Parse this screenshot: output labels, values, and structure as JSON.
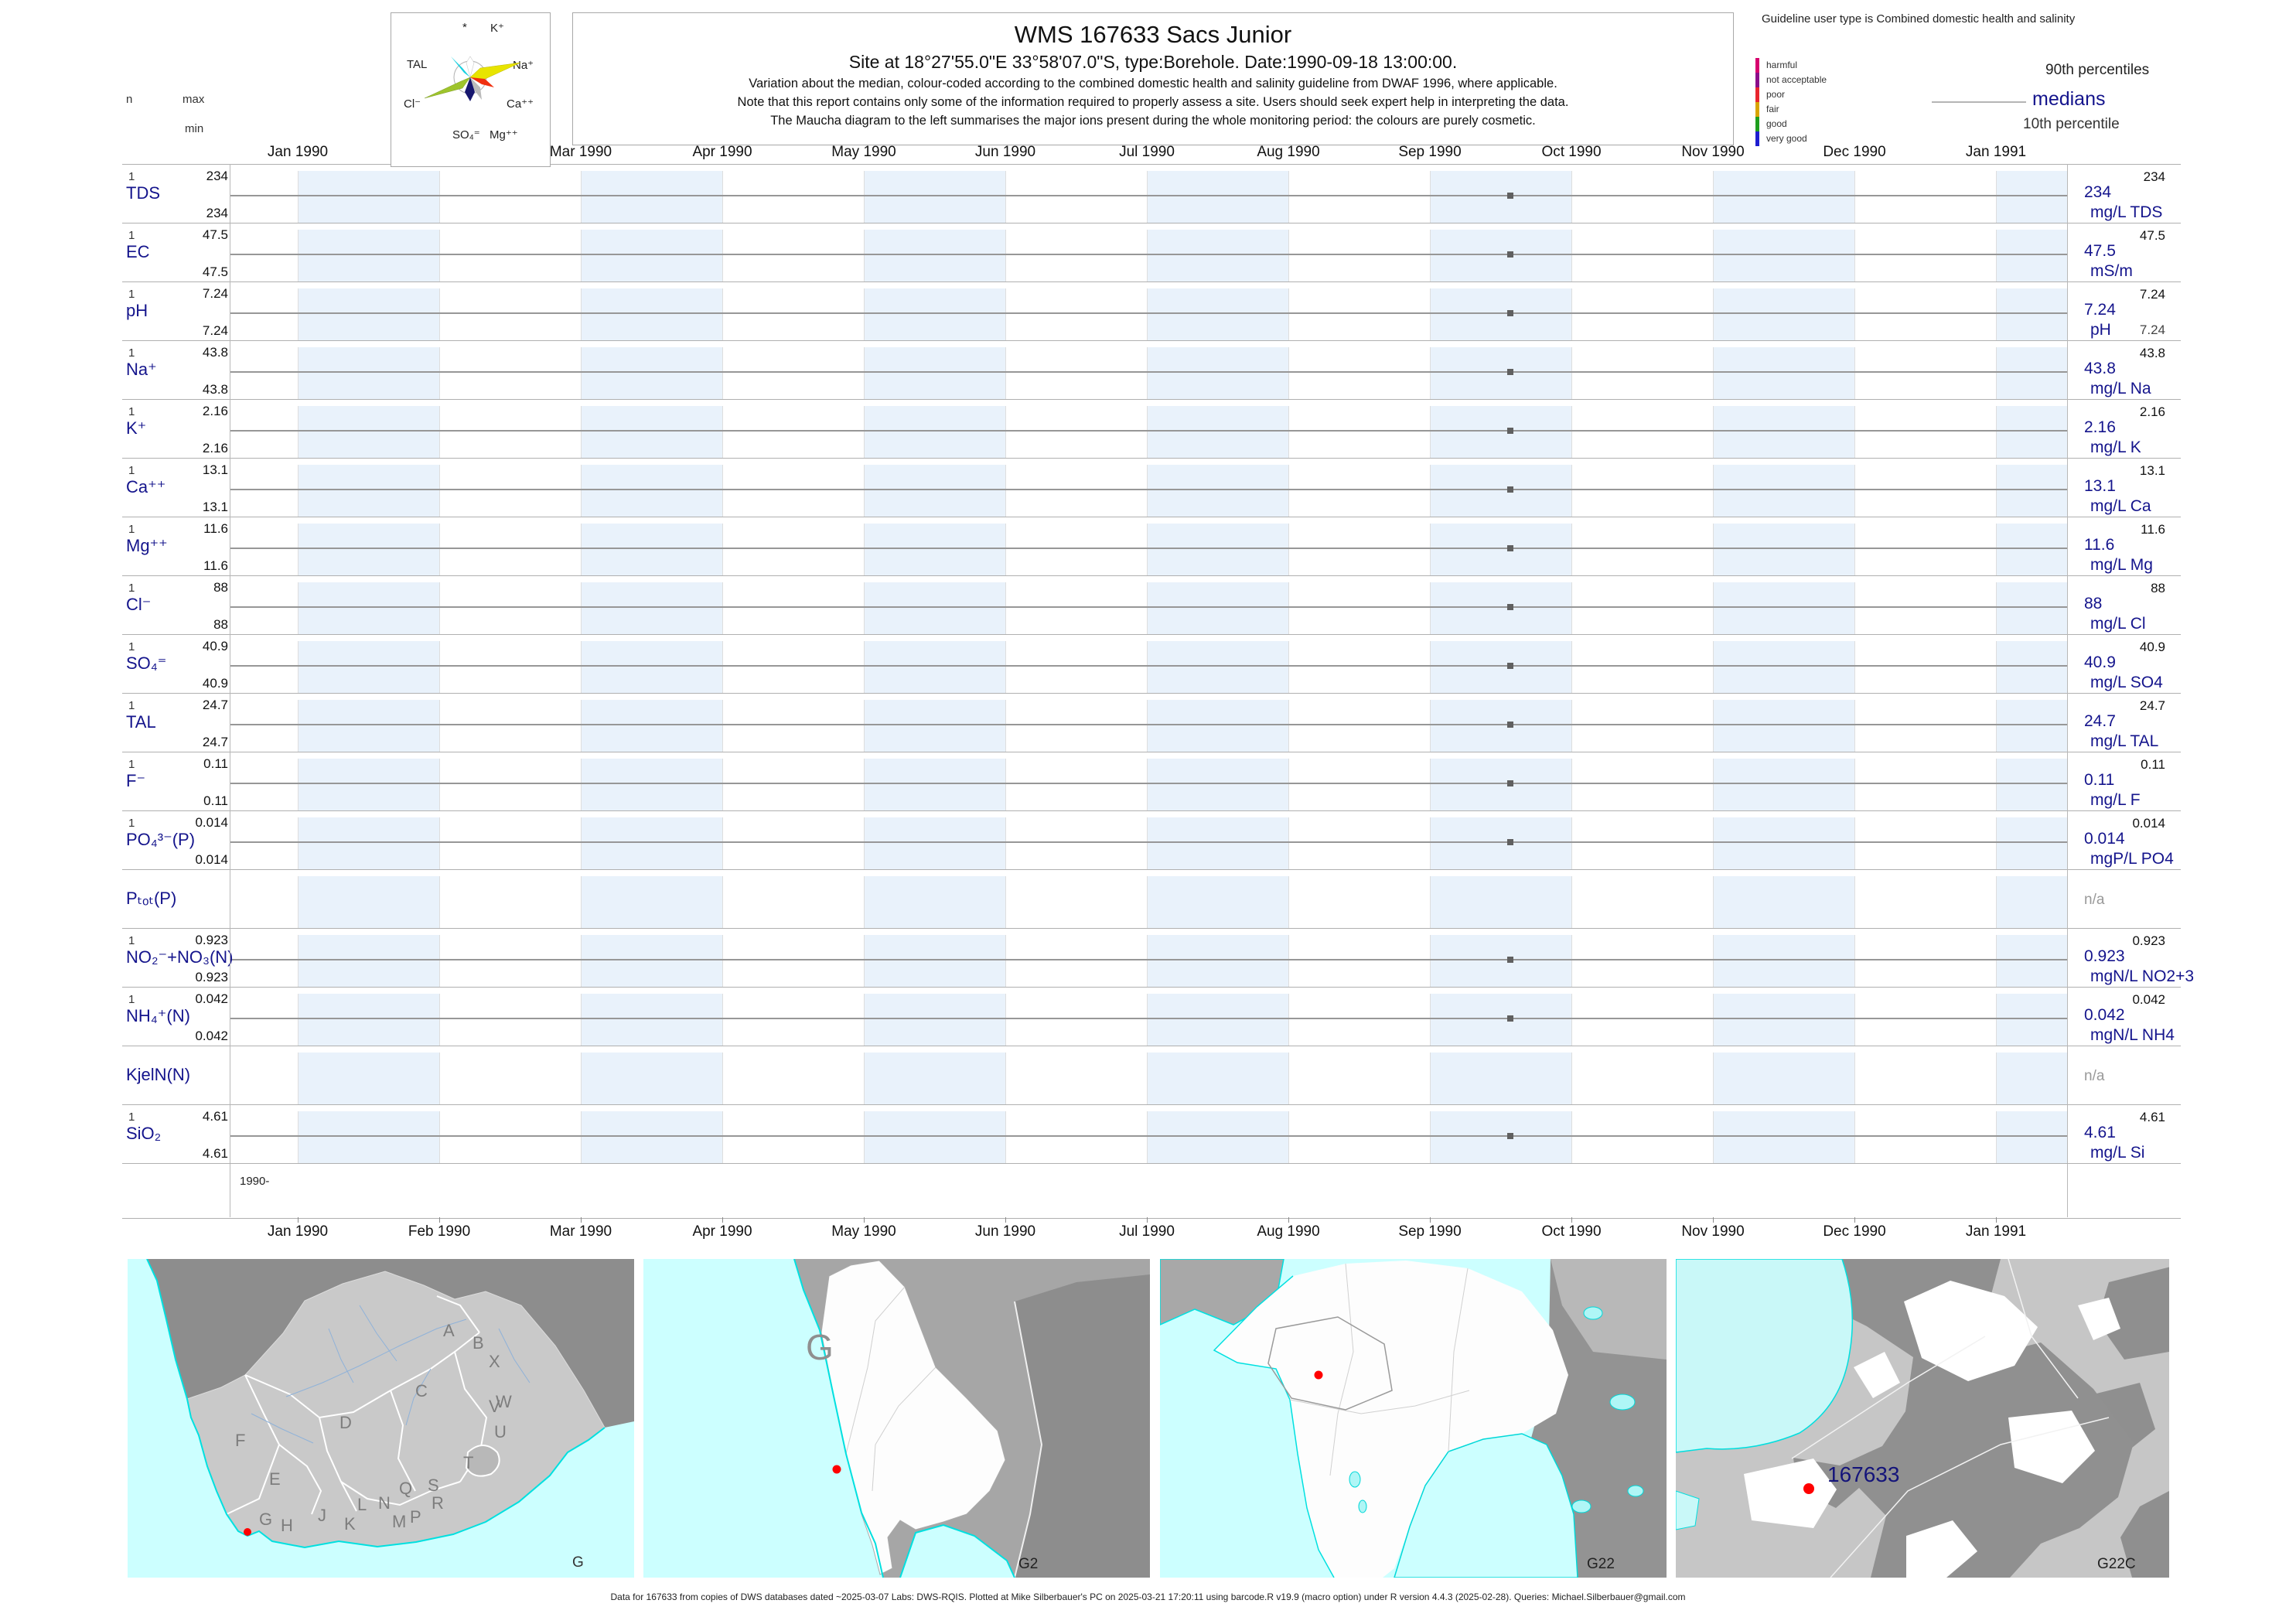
{
  "header": {
    "title": "WMS 167633  Sacs Junior",
    "subtitle": "Site at 18°27'55.0\"E 33°58'07.0\"S, type:Borehole. Date:1990-09-18 13:00:00.",
    "note1": "Variation about the median,  colour-coded according to the combined domestic health and salinity guideline from DWAF 1996, where applicable.",
    "note2": "Note that this report contains only some of the information required to properly assess a site. Users should seek expert help in interpreting the data.",
    "note3": "The Maucha diagram to the left summarises the major ions present during the whole monitoring period: the colours are purely cosmetic."
  },
  "stats_legend": {
    "n": "n",
    "max": "max",
    "min": "min"
  },
  "maucha": {
    "ions": [
      "*",
      "K⁺",
      "TAL",
      "Na⁺",
      "Cl⁻",
      "Ca⁺⁺",
      "SO₄⁼",
      "Mg⁺⁺"
    ]
  },
  "guideline": {
    "title": "Guideline user type is Combined domestic health and salinity",
    "classes": [
      {
        "label": "harmful",
        "color": "#d6006e"
      },
      {
        "label": "not acceptable",
        "color": "#8a0e8a"
      },
      {
        "label": "poor",
        "color": "#e8262d"
      },
      {
        "label": "fair",
        "color": "#d8a400"
      },
      {
        "label": "good",
        "color": "#1e9e1e"
      },
      {
        "label": "very good",
        "color": "#1d1dd0"
      }
    ],
    "p90": "90th percentiles",
    "median": "medians",
    "p10": "10th percentile"
  },
  "axis": {
    "months": [
      "Jan 1990",
      "Feb 1990",
      "Mar 1990",
      "Apr 1990",
      "May 1990",
      "Jun 1990",
      "Jul 1990",
      "Aug 1990",
      "Sep 1990",
      "Oct 1990",
      "Nov 1990",
      "Dec 1990",
      "Jan 1991"
    ],
    "year_label": "1990-"
  },
  "rows": [
    {
      "key": "TDS",
      "param": "TDS",
      "n": "1",
      "max": "234",
      "min": "234",
      "median": "234",
      "unit": "mg/L TDS",
      "p90": "234"
    },
    {
      "key": "EC",
      "param": "EC",
      "n": "1",
      "max": "47.5",
      "min": "47.5",
      "median": "47.5",
      "unit": "mS/m",
      "p90": "47.5"
    },
    {
      "key": "pH",
      "param": "pH",
      "n": "1",
      "max": "7.24",
      "min": "7.24",
      "median": "7.24",
      "unit": "pH",
      "p90": "7.24",
      "p10": "7.24"
    },
    {
      "key": "Na",
      "param": "Na⁺",
      "n": "1",
      "max": "43.8",
      "min": "43.8",
      "median": "43.8",
      "unit": "mg/L Na",
      "p90": "43.8"
    },
    {
      "key": "K",
      "param": "K⁺",
      "n": "1",
      "max": "2.16",
      "min": "2.16",
      "median": "2.16",
      "unit": "mg/L K",
      "p90": "2.16"
    },
    {
      "key": "Ca",
      "param": "Ca⁺⁺",
      "n": "1",
      "max": "13.1",
      "min": "13.1",
      "median": "13.1",
      "unit": "mg/L Ca",
      "p90": "13.1"
    },
    {
      "key": "Mg",
      "param": "Mg⁺⁺",
      "n": "1",
      "max": "11.6",
      "min": "11.6",
      "median": "11.6",
      "unit": "mg/L Mg",
      "p90": "11.6"
    },
    {
      "key": "Cl",
      "param": "Cl⁻",
      "n": "1",
      "max": "88",
      "min": "88",
      "median": "88",
      "unit": "mg/L Cl",
      "p90": "88"
    },
    {
      "key": "SO4",
      "param": "SO₄⁼",
      "n": "1",
      "max": "40.9",
      "min": "40.9",
      "median": "40.9",
      "unit": "mg/L SO4",
      "p90": "40.9"
    },
    {
      "key": "TAL",
      "param": "TAL",
      "n": "1",
      "max": "24.7",
      "min": "24.7",
      "median": "24.7",
      "unit": "mg/L TAL",
      "p90": "24.7"
    },
    {
      "key": "F",
      "param": "F⁻",
      "n": "1",
      "max": "0.11",
      "min": "0.11",
      "median": "0.11",
      "unit": "mg/L F",
      "p90": "0.11"
    },
    {
      "key": "PO4",
      "param": "PO₄³⁻(P)",
      "n": "1",
      "max": "0.014",
      "min": "0.014",
      "median": "0.014",
      "unit": "mgP/L PO4",
      "p90": "0.014"
    },
    {
      "key": "Ptot",
      "param": "Pₜₒₜ(P)",
      "na": "n/a"
    },
    {
      "key": "NO2NO3",
      "param": "NO₂⁻+NO₃(N)",
      "n": "1",
      "max": "0.923",
      "min": "0.923",
      "median": "0.923",
      "unit": "mgN/L NO2+3",
      "p90": "0.923"
    },
    {
      "key": "NH4",
      "param": "NH₄⁺(N)",
      "n": "1",
      "max": "0.042",
      "min": "0.042",
      "median": "0.042",
      "unit": "mgN/L NH4",
      "p90": "0.042"
    },
    {
      "key": "KjelN",
      "param": "KjelN(N)",
      "na": "n/a"
    },
    {
      "key": "SiO2",
      "param": "SiO₂",
      "n": "1",
      "max": "4.61",
      "min": "4.61",
      "median": "4.61",
      "unit": "mg/L Si",
      "p90": "4.61"
    }
  ],
  "maps": [
    {
      "label": "G",
      "letters": [
        "A",
        "B",
        "X",
        "W",
        "C",
        "V",
        "U",
        "D",
        "F",
        "E",
        "T",
        "S",
        "Q",
        "R",
        "L",
        "N",
        "P",
        "M",
        "J",
        "K",
        "G",
        "H"
      ]
    },
    {
      "label": "G2",
      "big_letter": "G"
    },
    {
      "label": "G22"
    },
    {
      "label": "G22C",
      "site_label": "167633"
    }
  ],
  "footer": "Data for 167633 from copies of DWS databases dated ~2025-03-07 Labs: DWS-RQIS. Plotted at Mike Silberbauer's PC on 2025-03-21 17:20:11 using barcode.R v19.9 (macro option) under R version 4.4.3 (2025-02-28). Queries: Michael.Silberbauer@gmail.com",
  "chart_data": {
    "type": "scatter",
    "title": "WMS 167633 Sacs Junior",
    "x_axis_labels": [
      "Jan 1990",
      "Feb 1990",
      "Mar 1990",
      "Apr 1990",
      "May 1990",
      "Jun 1990",
      "Jul 1990",
      "Aug 1990",
      "Sep 1990",
      "Oct 1990",
      "Nov 1990",
      "Dec 1990",
      "Jan 1991"
    ],
    "x_range": [
      "Dec 1989",
      "Jan 1991"
    ],
    "sample_date": "1990-09-18 13:00:00",
    "legend": {
      "top_value": "90th percentile",
      "line_value": "median",
      "bottom_value": "10th percentile"
    },
    "series": [
      {
        "name": "TDS",
        "unit": "mg/L TDS",
        "points": [
          {
            "x": "1990-09-18",
            "y": 234
          }
        ]
      },
      {
        "name": "EC",
        "unit": "mS/m",
        "points": [
          {
            "x": "1990-09-18",
            "y": 47.5
          }
        ]
      },
      {
        "name": "pH",
        "unit": "pH",
        "points": [
          {
            "x": "1990-09-18",
            "y": 7.24
          }
        ]
      },
      {
        "name": "Na",
        "unit": "mg/L Na",
        "points": [
          {
            "x": "1990-09-18",
            "y": 43.8
          }
        ]
      },
      {
        "name": "K",
        "unit": "mg/L K",
        "points": [
          {
            "x": "1990-09-18",
            "y": 2.16
          }
        ]
      },
      {
        "name": "Ca",
        "unit": "mg/L Ca",
        "points": [
          {
            "x": "1990-09-18",
            "y": 13.1
          }
        ]
      },
      {
        "name": "Mg",
        "unit": "mg/L Mg",
        "points": [
          {
            "x": "1990-09-18",
            "y": 11.6
          }
        ]
      },
      {
        "name": "Cl",
        "unit": "mg/L Cl",
        "points": [
          {
            "x": "1990-09-18",
            "y": 88
          }
        ]
      },
      {
        "name": "SO4",
        "unit": "mg/L SO4",
        "points": [
          {
            "x": "1990-09-18",
            "y": 40.9
          }
        ]
      },
      {
        "name": "TAL",
        "unit": "mg/L TAL",
        "points": [
          {
            "x": "1990-09-18",
            "y": 24.7
          }
        ]
      },
      {
        "name": "F",
        "unit": "mg/L F",
        "points": [
          {
            "x": "1990-09-18",
            "y": 0.11
          }
        ]
      },
      {
        "name": "PO4",
        "unit": "mgP/L PO4",
        "points": [
          {
            "x": "1990-09-18",
            "y": 0.014
          }
        ]
      },
      {
        "name": "Ptot",
        "unit": "",
        "points": []
      },
      {
        "name": "NO2+NO3",
        "unit": "mgN/L NO2+3",
        "points": [
          {
            "x": "1990-09-18",
            "y": 0.923
          }
        ]
      },
      {
        "name": "NH4",
        "unit": "mgN/L NH4",
        "points": [
          {
            "x": "1990-09-18",
            "y": 0.042
          }
        ]
      },
      {
        "name": "KjelN",
        "unit": "",
        "points": []
      },
      {
        "name": "SiO2",
        "unit": "mg/L Si",
        "points": [
          {
            "x": "1990-09-18",
            "y": 4.61
          }
        ]
      }
    ]
  }
}
